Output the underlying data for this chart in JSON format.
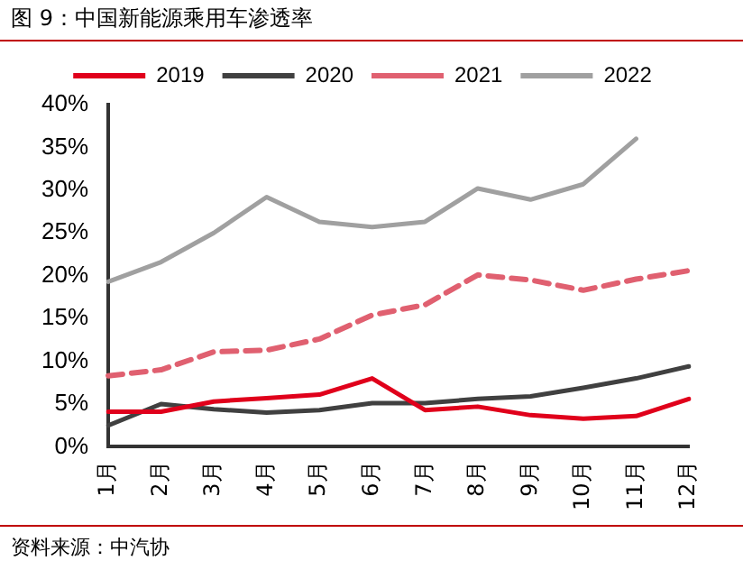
{
  "chart_data": {
    "type": "line",
    "title": "图 9：中国新能源乘用车渗透率",
    "categories": [
      "1月",
      "2月",
      "3月",
      "4月",
      "5月",
      "6月",
      "7月",
      "8月",
      "9月",
      "10月",
      "11月",
      "12月"
    ],
    "series": [
      {
        "name": "2019",
        "color": "#e0001b",
        "values": [
          4.1,
          4.1,
          5.3,
          5.7,
          6.1,
          8.0,
          4.3,
          4.7,
          3.7,
          3.3,
          3.6,
          5.6
        ]
      },
      {
        "name": "2020",
        "color": "#404040",
        "values": [
          2.5,
          5.0,
          4.4,
          4.0,
          4.3,
          5.1,
          5.1,
          5.6,
          5.9,
          6.9,
          8.0,
          9.4
        ]
      },
      {
        "name": "2021",
        "color": "#e06070",
        "line_style": "dashed",
        "values": [
          8.3,
          9.0,
          11.1,
          11.3,
          12.6,
          15.4,
          16.6,
          20.1,
          19.5,
          18.3,
          19.6,
          20.6
        ]
      },
      {
        "name": "2022",
        "color": "#a0a0a0",
        "values": [
          19.3,
          21.6,
          25.0,
          29.2,
          26.3,
          25.7,
          26.3,
          30.2,
          28.9,
          30.7,
          36.0,
          null
        ]
      }
    ],
    "ylim": [
      0,
      40
    ],
    "yticks": [
      {
        "value": 0,
        "label": "0%"
      },
      {
        "value": 5,
        "label": "5%"
      },
      {
        "value": 10,
        "label": "10%"
      },
      {
        "value": 15,
        "label": "15%"
      },
      {
        "value": 20,
        "label": "20%"
      },
      {
        "value": 25,
        "label": "25%"
      },
      {
        "value": 30,
        "label": "30%"
      },
      {
        "value": 35,
        "label": "35%"
      },
      {
        "value": 40,
        "label": "40%"
      }
    ],
    "legend": "top",
    "grid": false,
    "marker": "none",
    "annotations": [
      "资料来源：中汽协"
    ]
  }
}
